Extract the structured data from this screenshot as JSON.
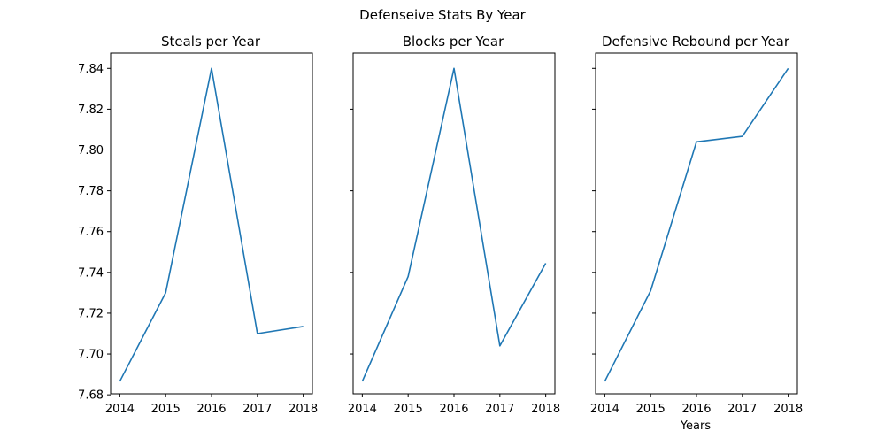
{
  "figure": {
    "title": "Defenseive Stats By Year",
    "series_color": "#1f77b4"
  },
  "chart_data": [
    {
      "type": "line",
      "title": "Steals per Year",
      "xlabel": "",
      "ylabel": "",
      "x": [
        2014,
        2015,
        2016,
        2017,
        2018
      ],
      "values": [
        7.6866,
        7.73,
        7.84,
        7.71,
        7.7135
      ],
      "xlim": [
        2013.8,
        2018.2
      ],
      "ylim": [
        7.6805,
        7.8475
      ],
      "x_ticks": [
        "2014",
        "2015",
        "2016",
        "2017",
        "2018"
      ],
      "y_ticks": [
        "7.68",
        "7.70",
        "7.72",
        "7.74",
        "7.76",
        "7.78",
        "7.80",
        "7.82",
        "7.84"
      ],
      "y_tick_values": [
        7.68,
        7.7,
        7.72,
        7.74,
        7.76,
        7.78,
        7.8,
        7.82,
        7.84
      ],
      "grid": false
    },
    {
      "type": "line",
      "title": "Blocks per Year",
      "xlabel": "",
      "ylabel": "",
      "x": [
        2014,
        2015,
        2016,
        2017,
        2018
      ],
      "values": [
        7.6866,
        7.738,
        7.84,
        7.704,
        7.7445
      ],
      "xlim": [
        2013.8,
        2018.2
      ],
      "ylim": [
        7.6805,
        7.8475
      ],
      "x_ticks": [
        "2014",
        "2015",
        "2016",
        "2017",
        "2018"
      ],
      "y_ticks": [],
      "y_tick_values": [
        7.7,
        7.74,
        7.78,
        7.82
      ],
      "grid": false
    },
    {
      "type": "line",
      "title": "Defensive Rebound per Year",
      "xlabel": "Years",
      "ylabel": "",
      "x": [
        2014,
        2015,
        2016,
        2017,
        2018
      ],
      "values": [
        7.6866,
        7.731,
        7.804,
        7.8067,
        7.84
      ],
      "xlim": [
        2013.8,
        2018.2
      ],
      "ylim": [
        7.6805,
        7.8475
      ],
      "x_ticks": [
        "2014",
        "2015",
        "2016",
        "2017",
        "2018"
      ],
      "y_ticks": [],
      "y_tick_values": [
        7.7,
        7.72,
        7.74,
        7.76,
        7.78,
        7.8,
        7.82,
        7.84
      ],
      "grid": false
    }
  ]
}
